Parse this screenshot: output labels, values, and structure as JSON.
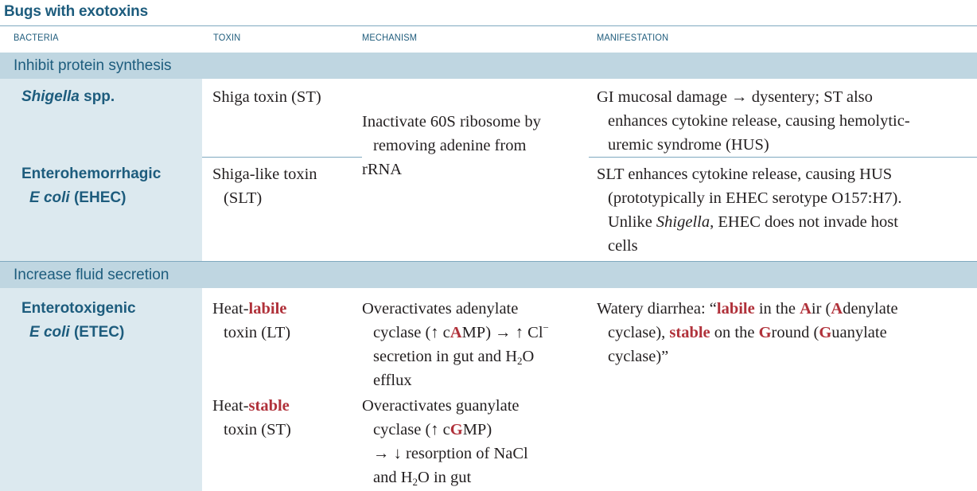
{
  "title": "Bugs with exotoxins",
  "columns": [
    "BACTERIA",
    "TOXIN",
    "MECHANISM",
    "MANIFESTATION"
  ],
  "sections": [
    {
      "label": "Inhibit protein synthesis",
      "rows": [
        {
          "bacteria": "Shigella spp.",
          "toxin": "Shiga toxin (ST)",
          "mechanism": "Inactivate 60S ribosome by removing adenine from rRNA",
          "manifestation": "GI mucosal damage → dysentery; ST also enhances cytokine release, causing hemolytic-uremic syndrome (HUS)"
        },
        {
          "bacteria": "Enterohemorrhagic E coli (EHEC)",
          "toxin": "Shiga-like toxin (SLT)",
          "mechanism": "",
          "manifestation": "SLT enhances cytokine release, causing HUS (prototypically in EHEC serotype O157:H7). Unlike Shigella, EHEC does not invade host cells"
        }
      ]
    },
    {
      "label": "Increase fluid secretion",
      "rows": [
        {
          "bacteria": "Enterotoxigenic E coli (ETEC)",
          "toxins": [
            {
              "toxin": "Heat-labile toxin (LT)",
              "mechanism": "Overactivates adenylate cyclase (↑ cAMP) → ↑ Cl− secretion in gut and H2O efflux"
            },
            {
              "toxin": "Heat-stable toxin (ST)",
              "mechanism": "Overactivates guanylate cyclase (↑ cGMP) → ↓ resorption of NaCl and H2O in gut"
            }
          ],
          "manifestation": "Watery diarrhea: “labile in the Air (Adenylate cyclase), stable on the Ground (Guanylate cyclase)”"
        }
      ]
    }
  ],
  "colors": {
    "heading": "#1d5c7d",
    "section_bg": "#bfd6e1",
    "bacteria_bg": "#dce9ef",
    "emphasis": "#b0313a"
  }
}
